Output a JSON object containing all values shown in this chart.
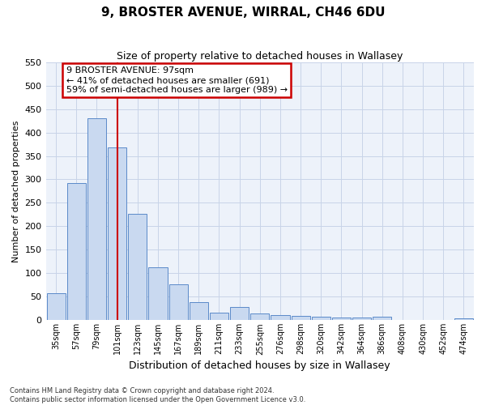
{
  "title": "9, BROSTER AVENUE, WIRRAL, CH46 6DU",
  "subtitle": "Size of property relative to detached houses in Wallasey",
  "xlabel": "Distribution of detached houses by size in Wallasey",
  "ylabel": "Number of detached properties",
  "bar_labels": [
    "35sqm",
    "57sqm",
    "79sqm",
    "101sqm",
    "123sqm",
    "145sqm",
    "167sqm",
    "189sqm",
    "211sqm",
    "233sqm",
    "255sqm",
    "276sqm",
    "298sqm",
    "320sqm",
    "342sqm",
    "364sqm",
    "386sqm",
    "408sqm",
    "430sqm",
    "452sqm",
    "474sqm"
  ],
  "bar_values": [
    57,
    293,
    430,
    368,
    226,
    113,
    76,
    38,
    16,
    28,
    15,
    10,
    9,
    8,
    6,
    5,
    7,
    0,
    0,
    0,
    4
  ],
  "bar_color": "#c9d9f0",
  "bar_edge_color": "#5b8ac9",
  "grid_color": "#c8d4e8",
  "bg_color": "#edf2fa",
  "vline_color": "#cc0000",
  "vline_pos": 3.0,
  "annotation_text": "9 BROSTER AVENUE: 97sqm\n← 41% of detached houses are smaller (691)\n59% of semi-detached houses are larger (989) →",
  "annotation_box_color": "#ffffff",
  "annotation_box_edge": "#cc0000",
  "ylim": [
    0,
    550
  ],
  "yticks": [
    0,
    50,
    100,
    150,
    200,
    250,
    300,
    350,
    400,
    450,
    500,
    550
  ],
  "footnote1": "Contains HM Land Registry data © Crown copyright and database right 2024.",
  "footnote2": "Contains public sector information licensed under the Open Government Licence v3.0."
}
